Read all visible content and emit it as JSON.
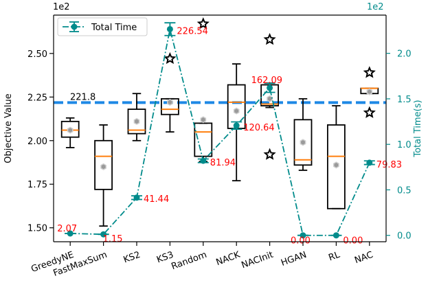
{
  "chart_data": {
    "type": "box",
    "categories": [
      "GreedyNE",
      "FastMaxSum",
      "KS2",
      "KS3",
      "Random",
      "NACK",
      "NACInit",
      "HGAN",
      "RL",
      "NAC"
    ],
    "left_axis": {
      "label": "Objective Value",
      "multiplier": "1e2",
      "ylim": [
        1.42,
        2.72
      ],
      "ticks": [
        "1.50",
        "1.75",
        "2.00",
        "2.25",
        "2.50"
      ],
      "color": "#000000"
    },
    "right_axis": {
      "label": "Total Time(s)",
      "multiplier": "1e2",
      "ylim": [
        -0.07,
        2.42
      ],
      "ticks": [
        "0.0",
        "0.5",
        "1.0",
        "1.5",
        "2.0"
      ],
      "color": "#008b8b"
    },
    "boxes": [
      {
        "category": "GreedyNE",
        "whislo": 1.96,
        "q1": 2.02,
        "med": 2.06,
        "q3": 2.11,
        "whishi": 2.13,
        "mean": 2.06,
        "fliers": []
      },
      {
        "category": "FastMaxSum",
        "whislo": 1.51,
        "q1": 1.72,
        "med": 1.91,
        "q3": 2.0,
        "whishi": 2.09,
        "mean": 1.85,
        "fliers": []
      },
      {
        "category": "KS2",
        "whislo": 2.0,
        "q1": 2.04,
        "med": 2.06,
        "q3": 2.18,
        "whishi": 2.27,
        "mean": 2.11,
        "fliers": []
      },
      {
        "category": "KS3",
        "whislo": 2.05,
        "q1": 2.15,
        "med": 2.18,
        "q3": 2.24,
        "whishi": 2.24,
        "mean": 2.22,
        "fliers": [
          2.47
        ]
      },
      {
        "category": "Random",
        "whislo": 1.88,
        "q1": 1.91,
        "med": 2.05,
        "q3": 2.1,
        "whishi": 2.1,
        "mean": 2.12,
        "fliers": [
          2.67
        ]
      },
      {
        "category": "NACK",
        "whislo": 1.77,
        "q1": 2.07,
        "med": 2.22,
        "q3": 2.32,
        "whishi": 2.44,
        "mean": 2.17,
        "fliers": []
      },
      {
        "category": "NACInit",
        "whislo": 2.19,
        "q1": 2.2,
        "med": 2.21,
        "q3": 2.32,
        "whishi": 2.33,
        "mean": 2.24,
        "fliers": [
          2.58,
          1.92
        ]
      },
      {
        "category": "HGAN",
        "whislo": 1.83,
        "q1": 1.86,
        "med": 1.89,
        "q3": 2.12,
        "whishi": 2.24,
        "mean": 1.99,
        "fliers": []
      },
      {
        "category": "RL",
        "whislo": 1.61,
        "q1": 1.61,
        "med": 1.91,
        "q3": 2.09,
        "whishi": 2.2,
        "mean": 1.86,
        "fliers": []
      },
      {
        "category": "NAC",
        "whislo": 2.27,
        "q1": 2.27,
        "med": 2.3,
        "q3": 2.3,
        "whishi": 2.3,
        "mean": 2.28,
        "fliers": [
          2.39,
          2.16
        ]
      }
    ],
    "reference_line": {
      "value": 2.218,
      "label": "221.8",
      "color": "#1e88e5"
    },
    "series": [
      {
        "name": "Total Time",
        "axis": "right",
        "color": "#008b8b",
        "values": [
          0.0207,
          0.0115,
          0.4144,
          2.2654,
          0.8194,
          1.2064,
          1.6209,
          0.0,
          0.0,
          0.7983
        ],
        "errors": [
          0.0,
          0.0,
          0.02,
          0.07,
          0.02,
          0.04,
          0.05,
          0.0,
          0.0,
          0.02
        ],
        "labels": [
          "2.07",
          "1.15",
          "41.44",
          "226.54",
          "81.94",
          "120.64",
          "162.09",
          "0.00",
          "0.00",
          "79.83"
        ],
        "label_color": "#ff0000"
      }
    ],
    "colors": {
      "box": "#000000",
      "median": "#ff7f0e",
      "mean_marker": "#808080",
      "flier": "#000000"
    },
    "legend": {
      "position": "top-left",
      "entries": [
        "Total Time"
      ]
    },
    "grid": false
  }
}
